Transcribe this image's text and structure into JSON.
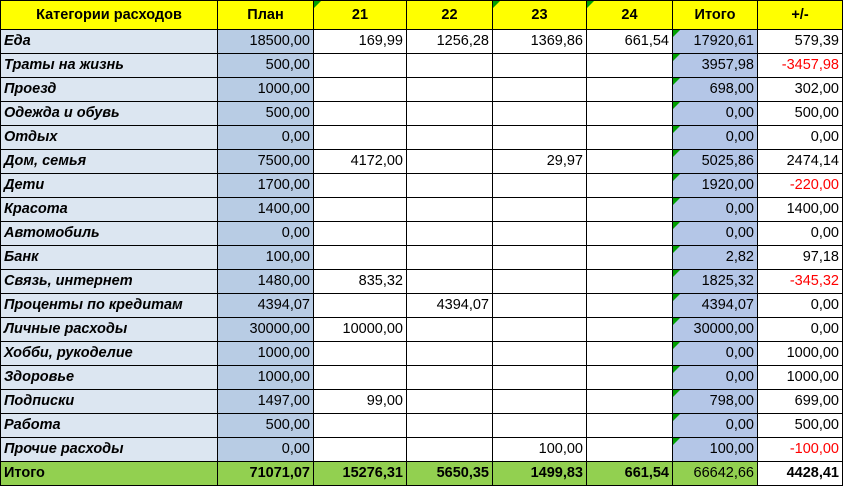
{
  "header": {
    "category": "Категории расходов",
    "plan": "План",
    "d21": "21",
    "d22": "22",
    "d23": "23",
    "d24": "24",
    "itogo": "Итого",
    "diff": "+/-"
  },
  "rows": [
    {
      "category": "Еда",
      "plan": "18500,00",
      "d21": "169,99",
      "d22": "1256,28",
      "d23": "1369,86",
      "d24": "661,54",
      "itogo": "17920,61",
      "diff": "579,39",
      "neg": false
    },
    {
      "category": "Траты на жизнь",
      "plan": "500,00",
      "d21": "",
      "d22": "",
      "d23": "",
      "d24": "",
      "itogo": "3957,98",
      "diff": "-3457,98",
      "neg": true
    },
    {
      "category": "Проезд",
      "plan": "1000,00",
      "d21": "",
      "d22": "",
      "d23": "",
      "d24": "",
      "itogo": "698,00",
      "diff": "302,00",
      "neg": false
    },
    {
      "category": "Одежда и обувь",
      "plan": "500,00",
      "d21": "",
      "d22": "",
      "d23": "",
      "d24": "",
      "itogo": "0,00",
      "diff": "500,00",
      "neg": false
    },
    {
      "category": "Отдых",
      "plan": "0,00",
      "d21": "",
      "d22": "",
      "d23": "",
      "d24": "",
      "itogo": "0,00",
      "diff": "0,00",
      "neg": false
    },
    {
      "category": "Дом, семья",
      "plan": "7500,00",
      "d21": "4172,00",
      "d22": "",
      "d23": "29,97",
      "d24": "",
      "itogo": "5025,86",
      "diff": "2474,14",
      "neg": false
    },
    {
      "category": "Дети",
      "plan": "1700,00",
      "d21": "",
      "d22": "",
      "d23": "",
      "d24": "",
      "itogo": "1920,00",
      "diff": "-220,00",
      "neg": true
    },
    {
      "category": "Красота",
      "plan": "1400,00",
      "d21": "",
      "d22": "",
      "d23": "",
      "d24": "",
      "itogo": "0,00",
      "diff": "1400,00",
      "neg": false
    },
    {
      "category": "Автомобиль",
      "plan": "0,00",
      "d21": "",
      "d22": "",
      "d23": "",
      "d24": "",
      "itogo": "0,00",
      "diff": "0,00",
      "neg": false
    },
    {
      "category": "Банк",
      "plan": "100,00",
      "d21": "",
      "d22": "",
      "d23": "",
      "d24": "",
      "itogo": "2,82",
      "diff": "97,18",
      "neg": false
    },
    {
      "category": "Связь, интернет",
      "plan": "1480,00",
      "d21": "835,32",
      "d22": "",
      "d23": "",
      "d24": "",
      "itogo": "1825,32",
      "diff": "-345,32",
      "neg": true
    },
    {
      "category": "Проценты по кредитам",
      "plan": "4394,07",
      "d21": "",
      "d22": "4394,07",
      "d23": "",
      "d24": "",
      "itogo": "4394,07",
      "diff": "0,00",
      "neg": false
    },
    {
      "category": "Личные расходы",
      "plan": "30000,00",
      "d21": "10000,00",
      "d22": "",
      "d23": "",
      "d24": "",
      "itogo": "30000,00",
      "diff": "0,00",
      "neg": false
    },
    {
      "category": "Хобби, рукоделие",
      "plan": "1000,00",
      "d21": "",
      "d22": "",
      "d23": "",
      "d24": "",
      "itogo": "0,00",
      "diff": "1000,00",
      "neg": false
    },
    {
      "category": "Здоровье",
      "plan": "1000,00",
      "d21": "",
      "d22": "",
      "d23": "",
      "d24": "",
      "itogo": "0,00",
      "diff": "1000,00",
      "neg": false
    },
    {
      "category": "Подписки",
      "plan": "1497,00",
      "d21": "99,00",
      "d22": "",
      "d23": "",
      "d24": "",
      "itogo": "798,00",
      "diff": "699,00",
      "neg": false
    },
    {
      "category": "Работа",
      "plan": "500,00",
      "d21": "",
      "d22": "",
      "d23": "",
      "d24": "",
      "itogo": "0,00",
      "diff": "500,00",
      "neg": false
    },
    {
      "category": "Прочие расходы",
      "plan": "0,00",
      "d21": "",
      "d22": "",
      "d23": "100,00",
      "d24": "",
      "itogo": "100,00",
      "diff": "-100,00",
      "neg": true
    }
  ],
  "total": {
    "category": "Итого",
    "plan": "71071,07",
    "d21": "15276,31",
    "d22": "5650,35",
    "d23": "1499,83",
    "d24": "661,54",
    "itogo": "66642,66",
    "diff": "4428,41"
  },
  "colors": {
    "header_bg": "#ffff00",
    "category_bg": "#dce6f1",
    "plan_bg": "#b8cce4",
    "itogo_bg": "#b4c6e7",
    "total_bg": "#92d050",
    "negative_text": "#ff0000",
    "comment_marker": "#00a000"
  },
  "icons": {
    "cell_marker": "green-triangle-comment-indicator"
  }
}
